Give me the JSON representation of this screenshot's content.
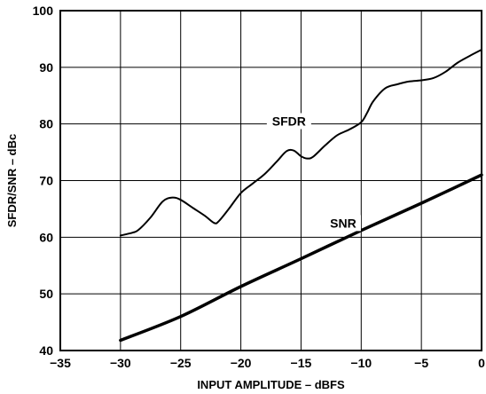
{
  "chart_data": {
    "type": "line",
    "title": "",
    "xlabel": "INPUT AMPLITUDE – dBFS",
    "ylabel": "SFDR/SNR – dBc",
    "xlim": [
      -35,
      0
    ],
    "ylim": [
      40,
      100
    ],
    "xticks": [
      -35,
      -30,
      -25,
      -20,
      -15,
      -10,
      -5,
      0
    ],
    "yticks": [
      40,
      50,
      60,
      70,
      80,
      90,
      100
    ],
    "grid": true,
    "series": [
      {
        "name": "SFDR",
        "color": "#000000",
        "x": [
          -30,
          -29,
          -28.5,
          -27.5,
          -26.5,
          -25.7,
          -25,
          -24,
          -23,
          -22.2,
          -21.8,
          -21,
          -20,
          -19,
          -18,
          -17,
          -16.2,
          -15.6,
          -15,
          -14.5,
          -14,
          -13,
          -12,
          -11,
          -10,
          -9.5,
          -9,
          -8,
          -7,
          -6,
          -5,
          -4,
          -3,
          -2,
          -1,
          0
        ],
        "y": [
          60.3,
          60.8,
          61.3,
          63.5,
          66.3,
          67.0,
          66.6,
          65.2,
          63.8,
          62.5,
          62.9,
          65.0,
          67.8,
          69.5,
          71.2,
          73.4,
          75.2,
          75.3,
          74.3,
          73.9,
          74.2,
          76.2,
          78.0,
          79.0,
          80.3,
          82.0,
          84.0,
          86.3,
          87.0,
          87.5,
          87.7,
          88.1,
          89.2,
          90.8,
          92.0,
          93.1
        ]
      },
      {
        "name": "SNR",
        "color": "#000000",
        "x": [
          -30,
          -25,
          -20,
          -15,
          -10,
          -5,
          0
        ],
        "y": [
          41.8,
          46.0,
          51.3,
          56.2,
          61.2,
          66.0,
          71.0
        ]
      }
    ],
    "annotations": [
      {
        "text": "SFDR",
        "series": "SFDR",
        "x": -16,
        "y": 80.5
      },
      {
        "text": "SNR",
        "series": "SNR",
        "x": -11.5,
        "y": 62.5
      }
    ]
  }
}
